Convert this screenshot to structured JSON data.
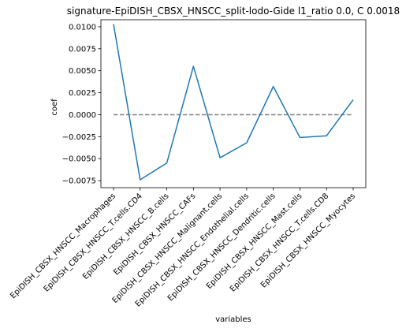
{
  "chart_data": {
    "type": "line",
    "title": "signature-EpiDISH_CBSX_HNSCC_split-lodo-Gide l1_ratio 0.0, C 0.0018",
    "xlabel": "variables",
    "ylabel": "coef",
    "categories": [
      "EpiDISH_CBSX_HNSCC_Macrophages",
      "EpiDISH_CBSX_HNSCC_T.cells.CD4",
      "EpiDISH_CBSX_HNSCC_B.cells",
      "EpiDISH_CBSX_HNSCC_CAFs",
      "EpiDISH_CBSX_HNSCC_Malignant.cells",
      "EpiDISH_CBSX_HNSCC_Endothelial.cells",
      "EpiDISH_CBSX_HNSCC_Dendritic.cells",
      "EpiDISH_CBSX_HNSCC_Mast.cells",
      "EpiDISH_CBSX_HNSCC_T.cells.CD8",
      "EpiDISH_CBSX_HNSCC_Myocytes"
    ],
    "series": [
      {
        "values": [
          0.0103,
          -0.0074,
          -0.0055,
          0.0055,
          -0.0049,
          -0.0032,
          0.0032,
          -0.0026,
          -0.0024,
          0.0017
        ],
        "color": "#1f77b4"
      }
    ],
    "reference_line": {
      "y": 0.0,
      "style": "dashed",
      "color": "#808080"
    },
    "ylim": [
      -0.0083,
      0.0108
    ],
    "yticks": [
      -0.0075,
      -0.005,
      -0.0025,
      0.0,
      0.0025,
      0.005,
      0.0075,
      0.01
    ],
    "ytick_labels": [
      "−0.0075",
      "−0.0050",
      "−0.0025",
      "0.0000",
      "0.0025",
      "0.0050",
      "0.0075",
      "0.0100"
    ],
    "grid": false,
    "legend": "none"
  }
}
